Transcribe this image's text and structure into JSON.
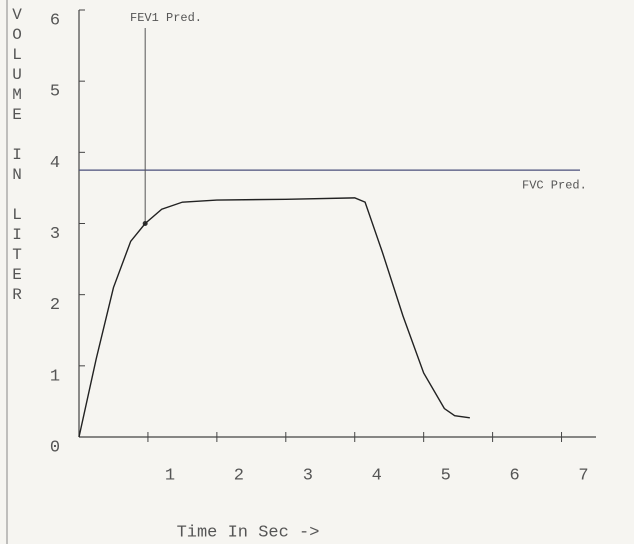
{
  "chart_data": {
    "type": "line",
    "x_label": "Time In Sec ->",
    "y_label": "VOLUME IN LITER",
    "x": [
      0,
      0.25,
      0.5,
      0.75,
      0.96,
      1.2,
      1.5,
      2,
      3,
      4,
      4.15,
      4.4,
      4.7,
      5,
      5.3,
      5.45,
      5.67
    ],
    "series": [
      {
        "color": "#222222",
        "values": [
          0,
          1.1,
          2.1,
          2.75,
          3.0,
          3.2,
          3.3,
          3.33,
          3.34,
          3.36,
          3.3,
          2.6,
          1.7,
          0.9,
          0.4,
          0.3,
          0.27
        ]
      }
    ],
    "xlim": [
      0,
      7.5
    ],
    "xticks": [
      1,
      2,
      3,
      4,
      5,
      6,
      7
    ],
    "ylim": [
      0,
      6
    ],
    "yticks": [
      0,
      1,
      2,
      3,
      4,
      5,
      6
    ],
    "fev1_pred": {
      "label": "FEV1 Pred.",
      "x": 0.96,
      "y": 3.0
    },
    "fvc_pred": {
      "label": "FVC Pred.",
      "y": 3.75
    }
  }
}
